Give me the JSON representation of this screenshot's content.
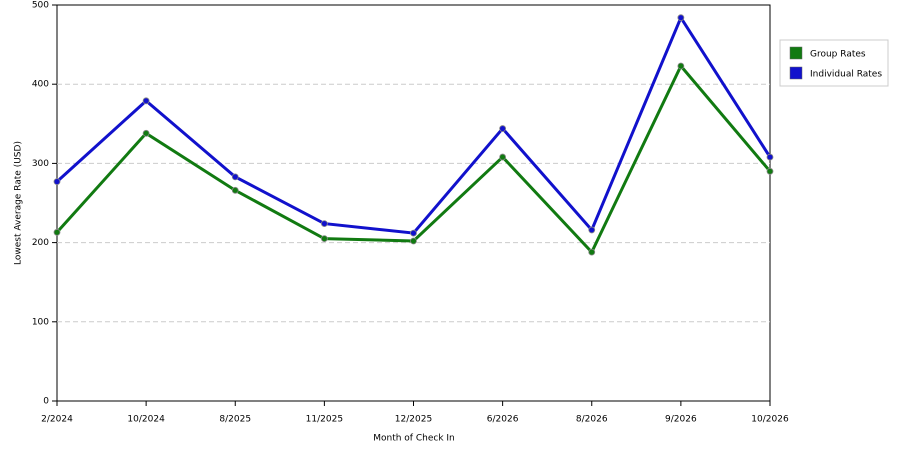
{
  "chart_data": {
    "type": "line",
    "x_label": "Month of Check In",
    "y_label": "Lowest Average Rate (USD)",
    "categories": [
      "2/2024",
      "10/2024",
      "8/2025",
      "11/2025",
      "12/2025",
      "6/2026",
      "8/2026",
      "9/2026",
      "10/2026"
    ],
    "series": [
      {
        "name": "Group Rates",
        "color": "#117a11",
        "values": [
          213,
          338,
          266,
          205,
          202,
          308,
          188,
          423,
          290
        ]
      },
      {
        "name": "Individual Rates",
        "color": "#1111cc",
        "values": [
          277,
          379,
          283,
          224,
          212,
          344,
          216,
          484,
          308
        ]
      }
    ],
    "ylim": [
      0,
      500
    ],
    "yticks": [
      0,
      100,
      200,
      300,
      400,
      500
    ],
    "grid": true,
    "legend": "right"
  }
}
